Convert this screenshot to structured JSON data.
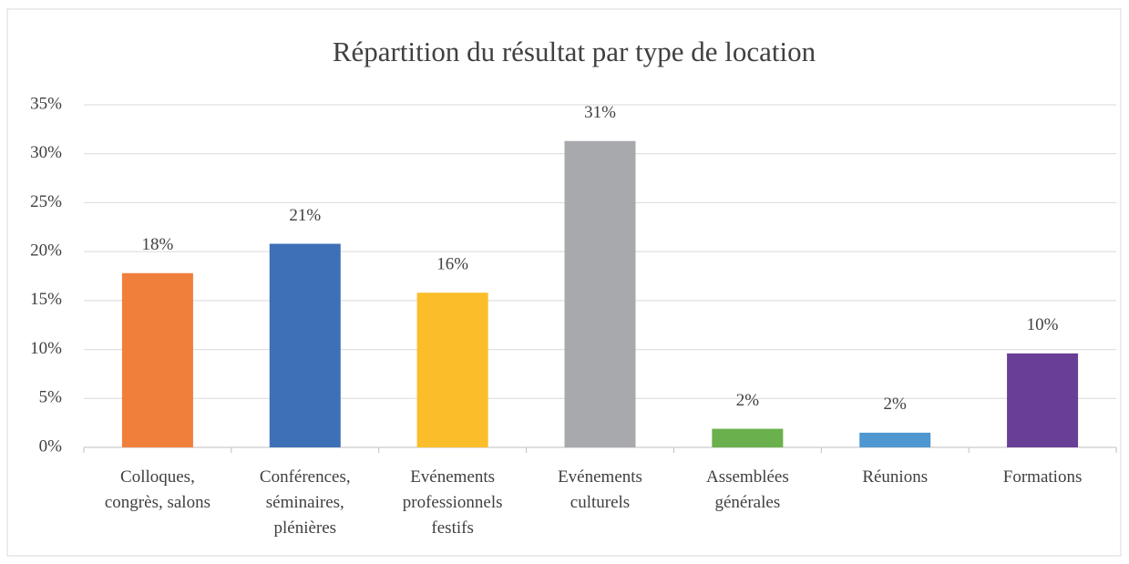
{
  "chart_data": {
    "type": "bar",
    "title": "Répartition du résultat par type de location",
    "categories": [
      "Colloques,\ncongrès, salons",
      "Conférences,\nséminaires,\nplénières",
      "Evénements\nprofessionnels\nfestifs",
      "Evénements\nculturels",
      "Assemblées\ngénérales",
      "Réunions",
      "Formations"
    ],
    "values": [
      17.8,
      20.8,
      15.8,
      31.3,
      1.9,
      1.5,
      9.6
    ],
    "value_labels": [
      "18%",
      "21%",
      "16%",
      "31%",
      "2%",
      "2%",
      "10%"
    ],
    "colors": [
      "#f07f3c",
      "#3e70b8",
      "#fbbd29",
      "#a8a9ad",
      "#6ab04c",
      "#4e97d1",
      "#683f96"
    ],
    "ylim": [
      0,
      35
    ],
    "yticks": [
      {
        "value": 0,
        "label": "0%"
      },
      {
        "value": 5,
        "label": "5%"
      },
      {
        "value": 10,
        "label": "10%"
      },
      {
        "value": 15,
        "label": "15%"
      },
      {
        "value": 20,
        "label": "20%"
      },
      {
        "value": 25,
        "label": "25%"
      },
      {
        "value": 30,
        "label": "30%"
      },
      {
        "value": 35,
        "label": "35%"
      }
    ],
    "grid": true
  }
}
